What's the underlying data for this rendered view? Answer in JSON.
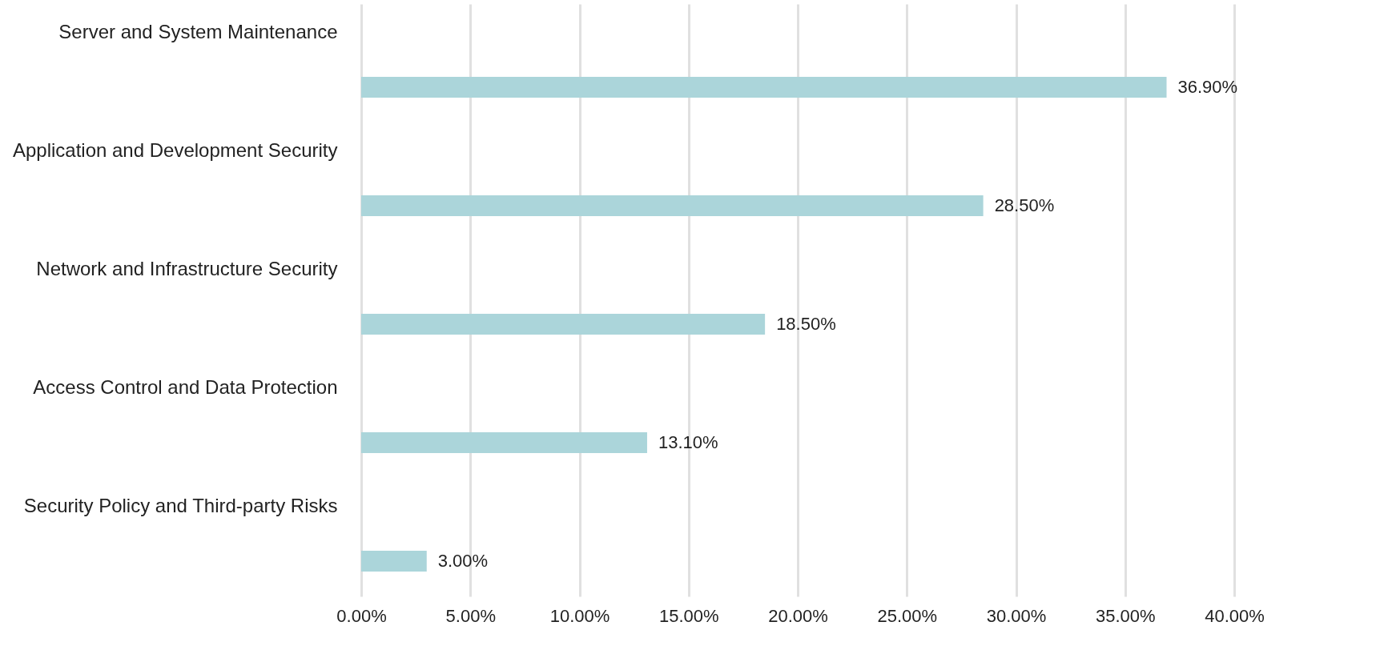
{
  "chart_data": {
    "type": "bar",
    "orientation": "horizontal",
    "categories": [
      "Server and System Maintenance",
      "Application and Development Security",
      "Network and Infrastructure Security",
      "Access Control and Data Protection",
      "Security Policy and Third-party Risks"
    ],
    "values": [
      36.9,
      28.5,
      18.5,
      13.1,
      3.0
    ],
    "value_labels": [
      "36.90%",
      "28.50%",
      "18.50%",
      "13.10%",
      "3.00%"
    ],
    "color": "#abd5da",
    "xlim": [
      0,
      40
    ],
    "xticks": [
      {
        "value": 0,
        "label": "0.00%"
      },
      {
        "value": 5,
        "label": "5.00%"
      },
      {
        "value": 10,
        "label": "10.00%"
      },
      {
        "value": 15,
        "label": "15.00%"
      },
      {
        "value": 20,
        "label": "20.00%"
      },
      {
        "value": 25,
        "label": "25.00%"
      },
      {
        "value": 30,
        "label": "30.00%"
      },
      {
        "value": 35,
        "label": "35.00%"
      },
      {
        "value": 40,
        "label": "40.00%"
      }
    ],
    "grid": "x"
  }
}
